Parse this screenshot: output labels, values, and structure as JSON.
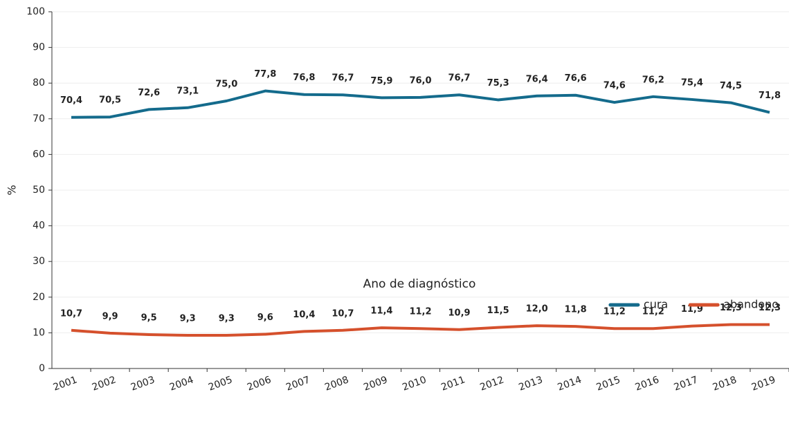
{
  "chart_data": {
    "type": "line",
    "x_label": "Ano de diagnóstico",
    "y_label": "%",
    "categories": [
      "2001",
      "2002",
      "2003",
      "2004",
      "2005",
      "2006",
      "2007",
      "2008",
      "2009",
      "2010",
      "2011",
      "2012",
      "2013",
      "2014",
      "2015",
      "2016",
      "2017",
      "2018",
      "2019"
    ],
    "series": [
      {
        "name": "cura",
        "color": "#146b8c",
        "values": [
          70.4,
          70.5,
          72.6,
          73.1,
          75.0,
          77.8,
          76.8,
          76.7,
          75.9,
          76.0,
          76.7,
          75.3,
          76.4,
          76.6,
          74.6,
          76.2,
          75.4,
          74.5,
          71.8
        ],
        "value_labels": [
          "70,4",
          "70,5",
          "72,6",
          "73,1",
          "75,0",
          "77,8",
          "76,8",
          "76,7",
          "75,9",
          "76,0",
          "76,7",
          "75,3",
          "76,4",
          "76,6",
          "74,6",
          "76,2",
          "75,4",
          "74,5",
          "71,8"
        ]
      },
      {
        "name": "abandono",
        "color": "#d5502c",
        "values": [
          10.7,
          9.9,
          9.5,
          9.3,
          9.3,
          9.6,
          10.4,
          10.7,
          11.4,
          11.2,
          10.9,
          11.5,
          12.0,
          11.8,
          11.2,
          11.2,
          11.9,
          12.3,
          12.3
        ],
        "value_labels": [
          "10,7",
          "9,9",
          "9,5",
          "9,3",
          "9,3",
          "9,6",
          "10,4",
          "10,7",
          "11,4",
          "11,2",
          "10,9",
          "11,5",
          "12,0",
          "11,8",
          "11,2",
          "11,2",
          "11,9",
          "12,3",
          "12,3"
        ]
      }
    ],
    "ylim": [
      0,
      100
    ],
    "yticks": [
      0,
      10,
      20,
      30,
      40,
      50,
      60,
      70,
      80,
      90,
      100
    ],
    "grid": true,
    "legend": "bottom-right"
  }
}
